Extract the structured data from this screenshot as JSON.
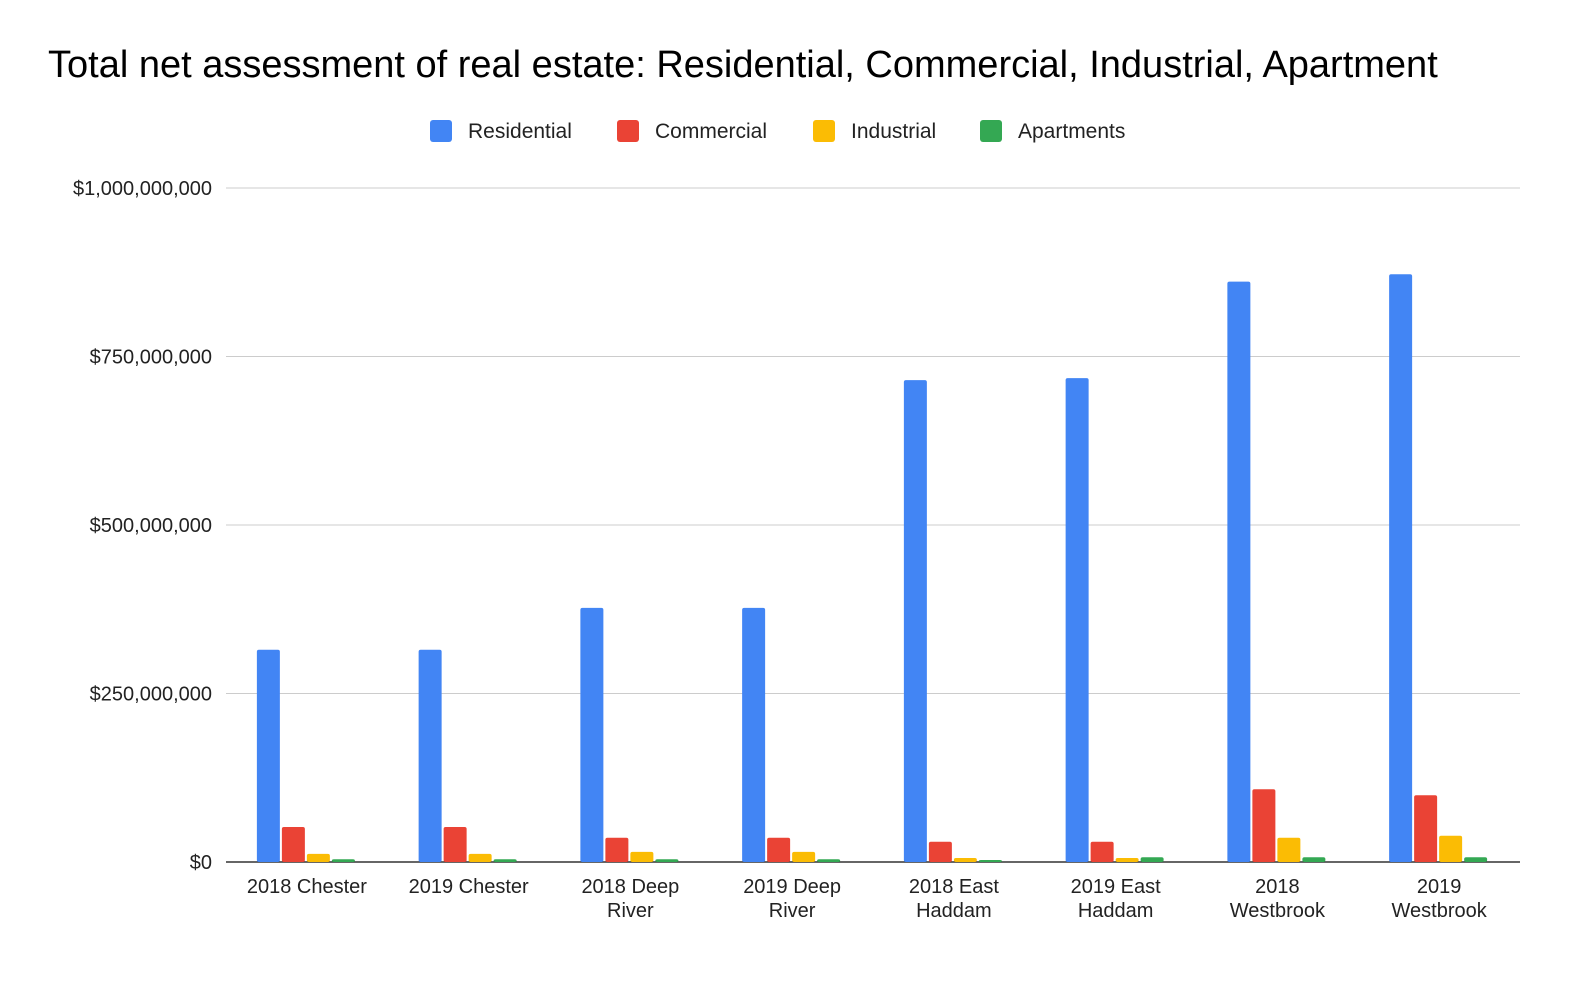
{
  "chart_data": {
    "type": "bar",
    "title": "Total net assessment of real estate: Residential, Commercial, Industrial, Apartment",
    "xlabel": "",
    "ylabel": "",
    "ylim": [
      0,
      1000000000
    ],
    "yticks": [
      "$0",
      "$250,000,000",
      "$500,000,000",
      "$750,000,000",
      "$1,000,000,000"
    ],
    "ytick_values": [
      0,
      250000000,
      500000000,
      750000000,
      1000000000
    ],
    "grid": true,
    "legend_position": "top",
    "categories": [
      [
        "2018 Chester"
      ],
      [
        "2019 Chester"
      ],
      [
        "2018 Deep",
        "River"
      ],
      [
        "2019 Deep",
        "River"
      ],
      [
        "2018 East",
        "Haddam"
      ],
      [
        "2019 East",
        "Haddam"
      ],
      [
        "2018",
        "Westbrook"
      ],
      [
        "2019",
        "Westbrook"
      ]
    ],
    "series": [
      {
        "name": "Residential",
        "color": "#4285f4",
        "values": [
          315000000,
          315000000,
          377000000,
          377000000,
          715000000,
          718000000,
          861000000,
          872000000
        ]
      },
      {
        "name": "Commercial",
        "color": "#ea4335",
        "values": [
          52000000,
          52000000,
          36000000,
          36000000,
          30000000,
          30000000,
          108000000,
          99000000
        ]
      },
      {
        "name": "Industrial",
        "color": "#fbbc04",
        "values": [
          12000000,
          12000000,
          15000000,
          15000000,
          6000000,
          6000000,
          36000000,
          39000000
        ]
      },
      {
        "name": "Apartments",
        "color": "#34a853",
        "values": [
          4000000,
          4000000,
          4000000,
          4000000,
          3000000,
          7000000,
          7000000,
          7000000
        ]
      }
    ]
  }
}
